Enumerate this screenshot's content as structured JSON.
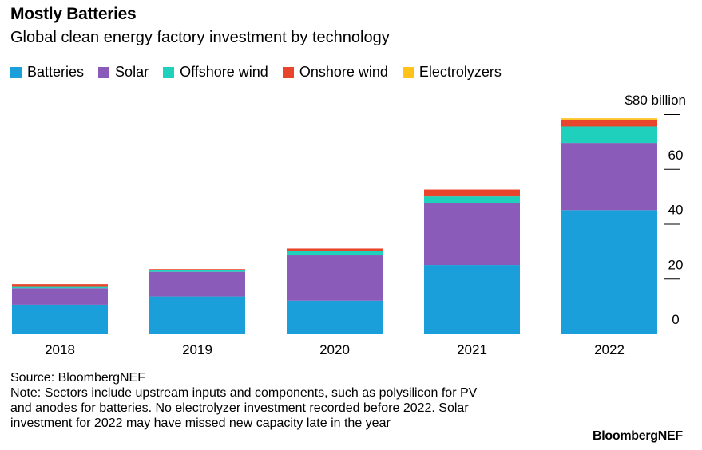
{
  "header": {
    "title": "Mostly Batteries",
    "subtitle": "Global clean energy factory investment by technology"
  },
  "colors": {
    "Batteries": "#1a9fdb",
    "Solar": "#8a5bb8",
    "Offshore wind": "#1fd1bc",
    "Onshore wind": "#e8452c",
    "Electrolyzers": "#ffc21a"
  },
  "chart_data": {
    "type": "bar",
    "stacked": true,
    "categories": [
      "2018",
      "2019",
      "2020",
      "2021",
      "2022"
    ],
    "series": [
      {
        "name": "Batteries",
        "values": [
          10.5,
          13.5,
          12,
          25,
          45
        ]
      },
      {
        "name": "Solar",
        "values": [
          6,
          9,
          16.5,
          22.5,
          24.5
        ]
      },
      {
        "name": "Offshore wind",
        "values": [
          0.5,
          0.5,
          1.5,
          2.5,
          6
        ]
      },
      {
        "name": "Onshore wind",
        "values": [
          1,
          0.5,
          1,
          2.5,
          2.5
        ]
      },
      {
        "name": "Electrolyzers",
        "values": [
          0,
          0,
          0,
          0,
          0.5
        ]
      }
    ],
    "y_unit_label": "$80 billion",
    "yticks": [
      "0",
      "20",
      "40",
      "60"
    ],
    "ylim": [
      0,
      80
    ],
    "legend_position": "top-left",
    "grid": false
  },
  "footer": {
    "source": "Source: BloombergNEF",
    "note_lines": [
      "Note: Sectors include upstream inputs and components, such as polysilicon for PV",
      "and anodes for batteries. No electrolyzer investment recorded before 2022. Solar",
      "investment for 2022 may have missed new capacity late in the year"
    ],
    "brand": "BloombergNEF"
  }
}
